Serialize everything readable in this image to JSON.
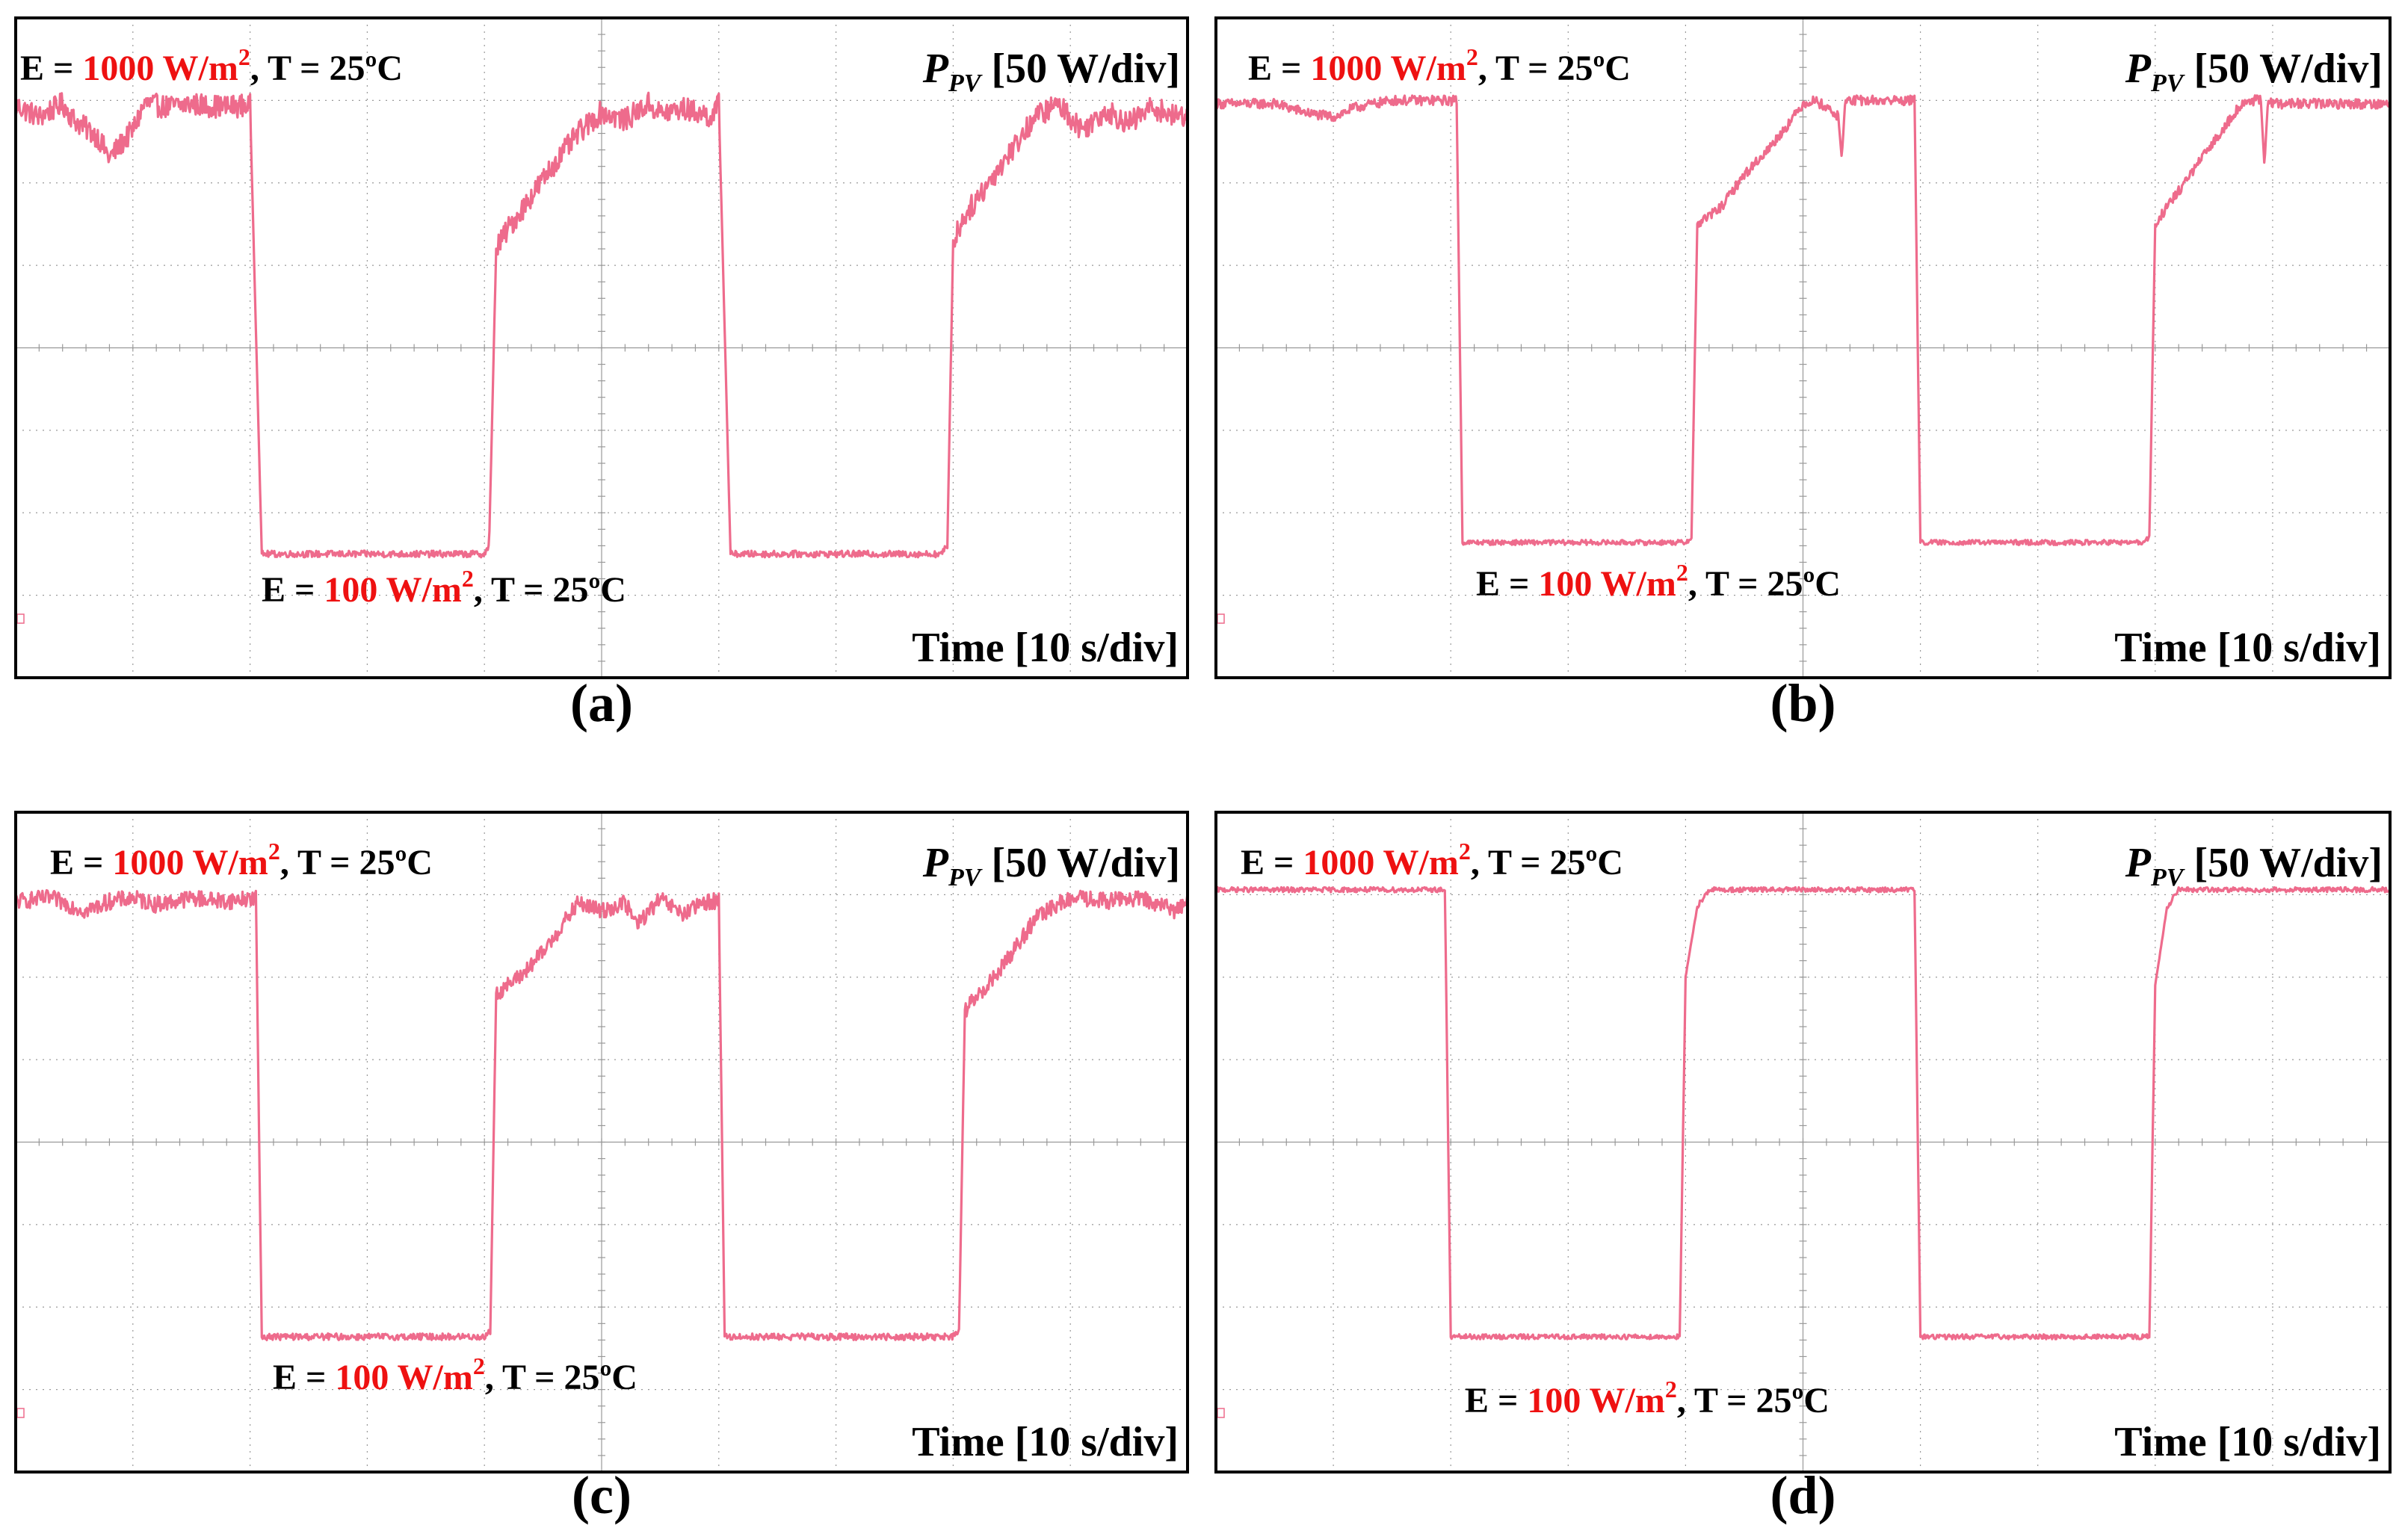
{
  "colors": {
    "trace": "#ee6b8c",
    "highlight": "#ee1111",
    "grid": "#999999",
    "frame": "#000000"
  },
  "chart_data": [
    {
      "type": "line",
      "caption": "(a)",
      "top_label": {
        "pre": "E = ",
        "value": "1000 W/m",
        "sup": "2",
        "post": ", T = 25ºC"
      },
      "bottom_label": {
        "pre": "E = ",
        "value": "100 W/m",
        "sup": "2",
        "post": ", T = 25ºC"
      },
      "ylabel": {
        "sym": "P",
        "sub": "PV",
        "scale": " [50 W/div]"
      },
      "xlabel": "Time [10 s/div]",
      "ylim": [
        -200,
        200
      ],
      "xlim": [
        0,
        100
      ],
      "series": [
        {
          "name": "PPV",
          "style": "noisy-mppt",
          "x": [
            0,
            2,
            4,
            5,
            7,
            8,
            10,
            11,
            13,
            15,
            16,
            18,
            19.5,
            20,
            21,
            40,
            40.4,
            41,
            42,
            44,
            46,
            48,
            50,
            52,
            54,
            55,
            57,
            59.5,
            60,
            61,
            79,
            79.5,
            80,
            81,
            83,
            85,
            87,
            89,
            91,
            93,
            95,
            97,
            99,
            100
          ],
          "y": [
            147,
            140,
            148,
            138,
            128,
            115,
            132,
            148,
            146,
            148,
            147,
            146,
            147,
            147,
            -125,
            -125,
            -120,
            60,
            72,
            92,
            112,
            130,
            143,
            138,
            148,
            142,
            145,
            140,
            148,
            -125,
            -125,
            -120,
            65,
            80,
            100,
            120,
            140,
            148,
            132,
            144,
            136,
            146,
            140,
            142
          ]
        }
      ]
    },
    {
      "type": "line",
      "caption": "(b)",
      "top_label": {
        "pre": "E = ",
        "value": "1000 W/m",
        "sup": "2",
        "post": ", T = 25ºC"
      },
      "bottom_label": {
        "pre": "E = ",
        "value": "100 W/m",
        "sup": "2",
        "post": ", T = 25ºC"
      },
      "ylabel": {
        "sym": "P",
        "sub": "PV",
        "scale": " [50 W/div]"
      },
      "xlabel": "Time [10 s/div]",
      "ylim": [
        -200,
        200
      ],
      "xlim": [
        0,
        100
      ],
      "series": [
        {
          "name": "PPV",
          "style": "low-noise-mppt",
          "x": [
            0,
            5,
            8,
            10,
            12,
            15,
            18,
            19,
            20,
            20.5,
            21,
            40,
            40.5,
            41,
            43,
            45,
            47,
            49,
            50,
            51,
            52,
            53,
            53.3,
            53.6,
            54,
            59,
            59.5,
            60,
            61,
            79,
            79.5,
            80,
            81,
            83,
            85,
            87,
            88,
            89,
            89.3,
            89.6,
            90,
            95,
            100
          ],
          "y": [
            148,
            148,
            142,
            140,
            146,
            150,
            150,
            150,
            150,
            150,
            -118,
            -118,
            -115,
            75,
            85,
            105,
            120,
            138,
            148,
            150,
            146,
            140,
            115,
            150,
            150,
            150,
            150,
            -118,
            -118,
            -118,
            -115,
            75,
            85,
            105,
            125,
            145,
            150,
            150,
            110,
            150,
            148,
            148,
            148
          ]
        }
      ]
    },
    {
      "type": "line",
      "caption": "(c)",
      "top_label": {
        "pre": "E = ",
        "value": "1000 W/m",
        "sup": "2",
        "post": ", T = 25ºC"
      },
      "bottom_label": {
        "pre": "E = ",
        "value": "100 W/m",
        "sup": "2",
        "post": ", T = 25ºC"
      },
      "ylabel": {
        "sym": "P",
        "sub": "PV",
        "scale": " [50 W/div]"
      },
      "xlabel": "Time [10 s/div]",
      "ylim": [
        -200,
        200
      ],
      "xlim": [
        0,
        100
      ],
      "series": [
        {
          "name": "PPV",
          "style": "medium-noise-mppt",
          "x": [
            0,
            3,
            6,
            8,
            10,
            12,
            15,
            18,
            20,
            20.5,
            21,
            40,
            40.5,
            41,
            43,
            45,
            47,
            48,
            50,
            52,
            53,
            55,
            57,
            59,
            60,
            60.5,
            61,
            80,
            80.5,
            81,
            83,
            85,
            87,
            89,
            91,
            93,
            95,
            97,
            99,
            100
          ],
          "y": [
            146,
            148,
            140,
            146,
            148,
            144,
            148,
            146,
            148,
            148,
            -118,
            -118,
            -115,
            90,
            100,
            115,
            135,
            145,
            140,
            145,
            132,
            147,
            138,
            146,
            146,
            -118,
            -118,
            -118,
            -115,
            80,
            95,
            115,
            135,
            145,
            148,
            146,
            148,
            146,
            140,
            148
          ]
        }
      ]
    },
    {
      "type": "line",
      "caption": "(d)",
      "top_label": {
        "pre": "E = ",
        "value": "1000 W/m",
        "sup": "2",
        "post": ", T = 25ºC"
      },
      "bottom_label": {
        "pre": "E = ",
        "value": "100 W/m",
        "sup": "2",
        "post": ", T = 25ºC"
      },
      "ylabel": {
        "sym": "P",
        "sub": "PV",
        "scale": " [50 W/div]"
      },
      "xlabel": "Time [10 s/div]",
      "ylim": [
        -200,
        200
      ],
      "xlim": [
        0,
        100
      ],
      "series": [
        {
          "name": "PPV",
          "style": "clean",
          "x": [
            0,
            19,
            19.5,
            20,
            21,
            39,
            39.5,
            40,
            41,
            42,
            45,
            59,
            59.5,
            60,
            61,
            79,
            79.5,
            80,
            81,
            82,
            85,
            100
          ],
          "y": [
            153,
            153,
            153,
            -118,
            -118,
            -118,
            -118,
            100,
            143,
            153,
            153,
            153,
            153,
            -118,
            -118,
            -118,
            -118,
            95,
            142,
            153,
            153,
            153
          ]
        }
      ]
    }
  ]
}
